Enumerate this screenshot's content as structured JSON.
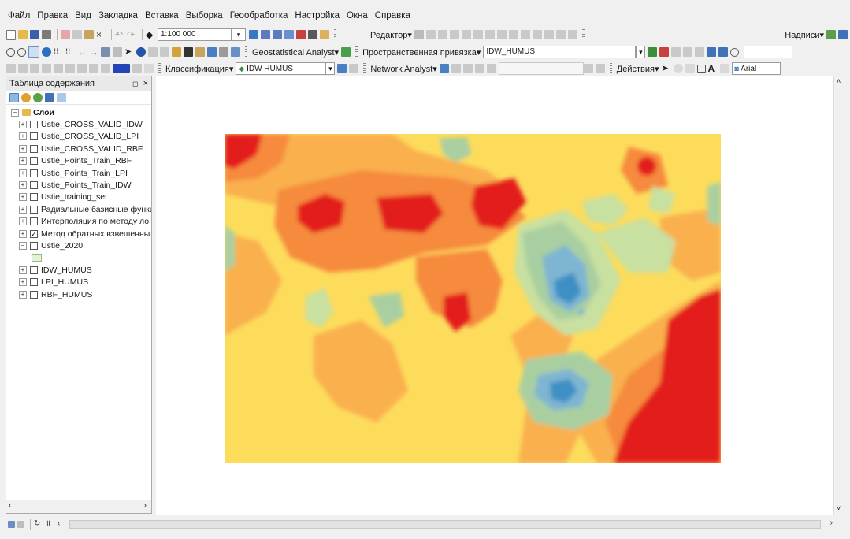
{
  "menu": [
    "Файл",
    "Правка",
    "Вид",
    "Закладка",
    "Вставка",
    "Выборка",
    "Геообработка",
    "Настройка",
    "Окна",
    "Справка"
  ],
  "toolbar1": {
    "scale": "1:100 000",
    "editor_label": "Редактор▾",
    "labels_label": "Надписи▾"
  },
  "toolbar2": {
    "geostat_label": "Geostatistical Analyst▾",
    "spatial_ref_label": "Пространственная привязка▾",
    "spatial_ref_layer": "IDW_HUMUS"
  },
  "toolbar3": {
    "classification_label": "Классификация▾",
    "classification_layer": "IDW HUMUS",
    "network_label": "Network Analyst▾",
    "actions_label": "Действия▾",
    "font_name": "Arial"
  },
  "toc": {
    "title": "Таблица содержания",
    "group_label": "Слои",
    "layers": [
      {
        "name": "Ustie_CROSS_VALID_IDW",
        "checked": false
      },
      {
        "name": "Ustie_CROSS_VALID_LPI",
        "checked": false
      },
      {
        "name": "Ustie_CROSS_VALID_RBF",
        "checked": false
      },
      {
        "name": "Ustie_Points_Train_RBF",
        "checked": false
      },
      {
        "name": "Ustie_Points_Train_LPI",
        "checked": false
      },
      {
        "name": "Ustie_Points_Train_IDW",
        "checked": false
      },
      {
        "name": "Ustie_training_set",
        "checked": false
      },
      {
        "name": "Радиальные базисные функц",
        "checked": false
      },
      {
        "name": "Интерполяция по методу ло",
        "checked": false
      },
      {
        "name": "Метод обратных взвешенны",
        "checked": true
      },
      {
        "name": "Ustie_2020",
        "checked": false,
        "expanded": true
      },
      {
        "name": "IDW_HUMUS",
        "checked": false
      },
      {
        "name": "LPI_HUMUS",
        "checked": false
      },
      {
        "name": "RBF_HUMUS",
        "checked": false
      }
    ]
  },
  "colors": {
    "map_red": "#e31a1c",
    "map_orange": "#f68a3d",
    "map_yellow": "#fddc5c",
    "map_green": "#a9cfa0",
    "map_blue": "#3d8fc4",
    "panel_bg": "#f0f0f0"
  }
}
